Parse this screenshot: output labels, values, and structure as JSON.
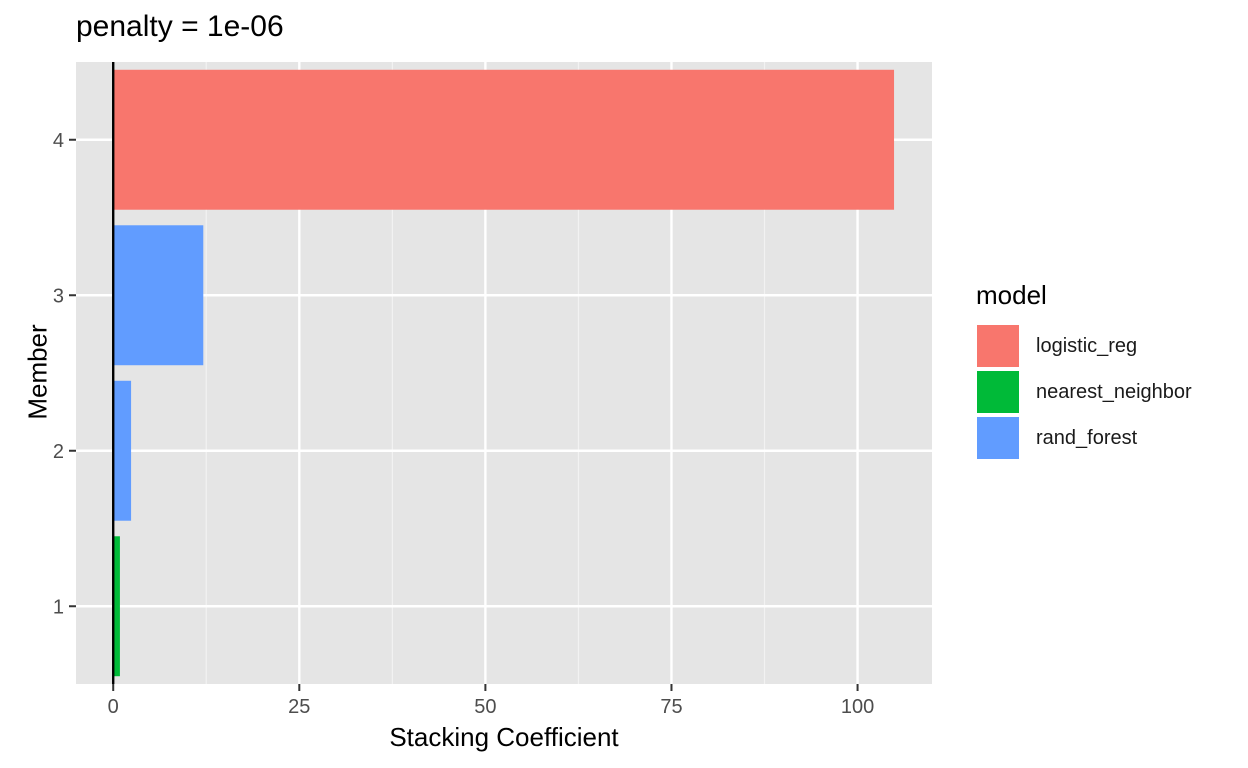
{
  "chart_data": {
    "type": "bar",
    "orientation": "horizontal",
    "title": "penalty = 1e-06",
    "xlabel": "Stacking Coefficient",
    "ylabel": "Member",
    "categories": [
      "1",
      "2",
      "3",
      "4"
    ],
    "values": [
      0.9,
      2.4,
      12.1,
      104.9
    ],
    "fill_model": [
      "nearest_neighbor",
      "rand_forest",
      "rand_forest",
      "logistic_reg"
    ],
    "xlim": [
      -5,
      110
    ],
    "xticks": [
      0,
      25,
      50,
      75,
      100
    ],
    "legend": {
      "title": "model",
      "position": "right",
      "entries": [
        {
          "label": "logistic_reg",
          "color": "#F8766D"
        },
        {
          "label": "nearest_neighbor",
          "color": "#00BA38"
        },
        {
          "label": "rand_forest",
          "color": "#619CFF"
        }
      ]
    },
    "reference_line_x": 0,
    "grid": true,
    "panel_background": "#E5E5E5"
  }
}
